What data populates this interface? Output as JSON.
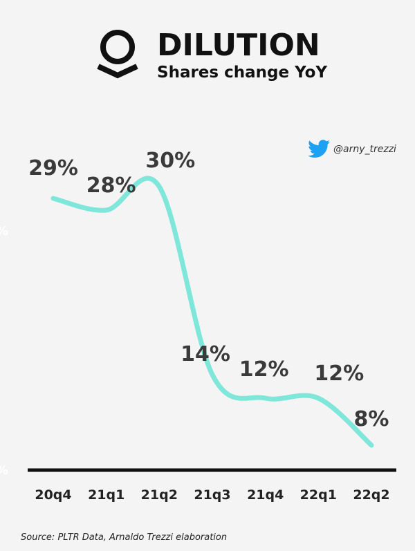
{
  "header": {
    "title": "DILUTION",
    "subtitle": "Shares change YoY",
    "logo_icon": "palantir-logo-icon"
  },
  "twitter": {
    "icon": "twitter-bird-icon",
    "handle": "@arny_trezzi",
    "color": "#1da1f2"
  },
  "chart_data": {
    "type": "line",
    "title": "DILUTION",
    "subtitle": "Shares change YoY",
    "categories": [
      "20q4",
      "21q1",
      "21q2",
      "21q3",
      "21q4",
      "22q1",
      "22q2"
    ],
    "series": [
      {
        "values": [
          29,
          28,
          30,
          14,
          12,
          12,
          8
        ]
      }
    ],
    "data_labels": [
      "29%",
      "28%",
      "30%",
      "14%",
      "12%",
      "12%",
      "8%"
    ],
    "xlabel": "",
    "ylabel": "",
    "ylim": [
      0,
      35
    ],
    "grid": false,
    "line_color": "#7fe6da"
  },
  "source": "Source: PLTR Data, Arnaldo Trezzi elaboration",
  "ghost_labels": [
    "%",
    "%"
  ]
}
